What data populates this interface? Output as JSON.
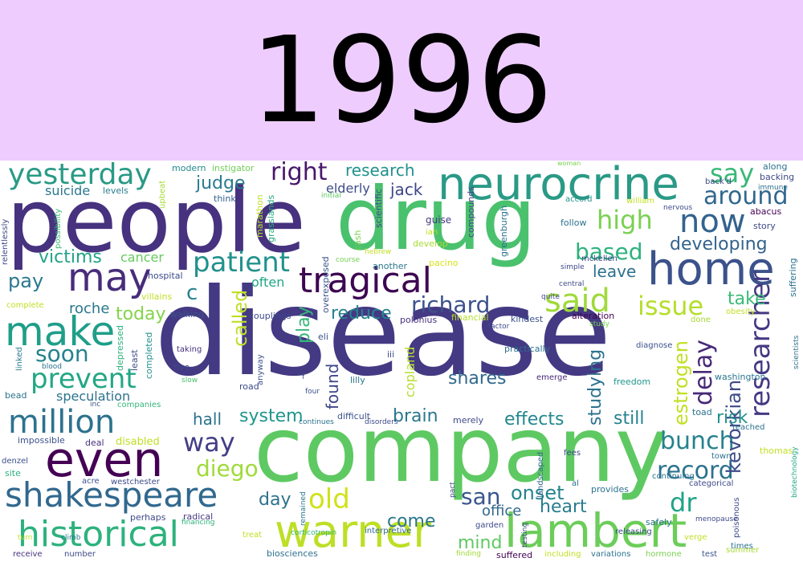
{
  "header": {
    "title": "1996"
  },
  "colors": {
    "header_bg": "#eecdfe"
  },
  "words": [
    "disease",
    "company",
    "drug",
    "people",
    "neurocrine",
    "warner",
    "lambert",
    "historical",
    "shakespeare",
    "make",
    "even",
    "may",
    "home",
    "million",
    "tragical",
    "now",
    "said",
    "yesterday",
    "prevent",
    "patient",
    "right",
    "richard",
    "researcher",
    "record",
    "bunch",
    "delay",
    "issue",
    "high",
    "say",
    "around",
    "based",
    "dr",
    "old",
    "kevorkian",
    "diego",
    "way",
    "san",
    "onset",
    "estrogen",
    "heart",
    "effects",
    "system",
    "called",
    "brain",
    "play",
    "soon",
    "studying",
    "shares",
    "research",
    "still",
    "reduce",
    "developing",
    "pay",
    "victims",
    "take",
    "judge",
    "jack",
    "today",
    "found",
    "mind",
    "come",
    "risk",
    "day",
    "hall",
    "speculation",
    "leave",
    "office",
    "suicide",
    "elderly",
    "copland",
    "cancer",
    "often",
    "c",
    "roche",
    "modern",
    "instigator",
    "levels",
    "upbeat",
    "think",
    "marathon",
    "grasslands",
    "overexposed",
    "possibility",
    "relentlessly",
    "initial",
    "cash",
    "scientific",
    "compounds",
    "greenburgh",
    "guise",
    "ian",
    "develop",
    "pacino",
    "another",
    "course",
    "hospital",
    "villains",
    "walking",
    "couplings",
    "polonius",
    "financial",
    "kindest",
    "alteration",
    "study",
    "eli",
    "taking",
    "five",
    "slow",
    "least",
    "completed",
    "depressed",
    "linked",
    "blood",
    "complete",
    "anyway",
    "road",
    "lilly",
    "iii",
    "practically",
    "emerge",
    "diagnose",
    "washington",
    "freedom",
    "four",
    "f",
    "inc",
    "companies",
    "bead",
    "continues",
    "difficult",
    "disorders",
    "merely",
    "impossible",
    "deal",
    "disabled",
    "denzel",
    "site",
    "acre",
    "westchester",
    "perhaps",
    "radical",
    "financing",
    "treat",
    "turn",
    "climb",
    "receive",
    "number",
    "biosciences",
    "residents",
    "festival",
    "finding",
    "suffered",
    "including",
    "variations",
    "hormone",
    "test",
    "summer",
    "times",
    "interpretive",
    "corticotropin",
    "remained",
    "pact",
    "landscaped",
    "garden",
    "fees",
    "testing",
    "safely",
    "releasing",
    "al",
    "provides",
    "categorical",
    "town",
    "continuing",
    "toad",
    "reached",
    "thomas",
    "biotechnology",
    "poisonous",
    "verge",
    "menopause",
    "scientists",
    "obesity",
    "done",
    "suffering",
    "story",
    "abacus",
    "immune",
    "backing",
    "along",
    "back'd",
    "nervous",
    "william",
    "accord",
    "woman",
    "hebrew",
    "follow",
    "mckellen",
    "simple",
    "central",
    "quite",
    "factor",
    "eli"
  ]
}
